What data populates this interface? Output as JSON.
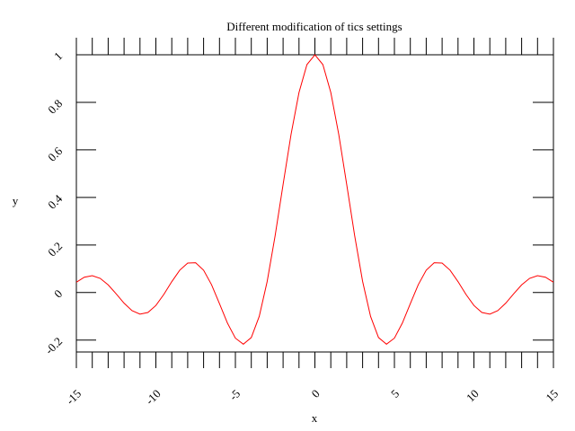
{
  "chart_data": {
    "type": "line",
    "title": "Different modification of tics settings",
    "x_label": "x",
    "y_label": "y",
    "x": [
      -15,
      -14.5,
      -14,
      -13.5,
      -13,
      -12.5,
      -12,
      -11.5,
      -11,
      -10.5,
      -10,
      -9.5,
      -9,
      -8.5,
      -8,
      -7.5,
      -7,
      -6.5,
      -6,
      -5.5,
      -5,
      -4.5,
      -4,
      -3.5,
      -3,
      -2.5,
      -2,
      -1.5,
      -1,
      -0.5,
      0,
      0.5,
      1,
      1.5,
      2,
      2.5,
      3,
      3.5,
      4,
      4.5,
      5,
      5.5,
      6,
      6.5,
      7,
      7.5,
      8,
      8.5,
      9,
      9.5,
      10,
      10.5,
      11,
      11.5,
      12,
      12.5,
      13,
      13.5,
      14,
      14.5,
      15
    ],
    "series": [
      {
        "color": "#ff0000",
        "values": [
          0.0434,
          0.0645,
          0.0708,
          0.0595,
          0.0323,
          -0.0053,
          -0.0447,
          -0.0761,
          -0.0909,
          -0.0838,
          -0.0544,
          -0.0079,
          0.0458,
          0.0939,
          0.1237,
          0.1251,
          0.0939,
          0.0331,
          -0.0466,
          -0.1283,
          -0.1918,
          -0.2172,
          -0.1892,
          -0.1002,
          0.047,
          0.2394,
          0.4546,
          0.665,
          0.8415,
          0.9589,
          1,
          0.9589,
          0.8415,
          0.665,
          0.4546,
          0.2394,
          0.047,
          -0.1002,
          -0.1892,
          -0.2172,
          -0.1918,
          -0.1283,
          -0.0466,
          0.0331,
          0.0939,
          0.1251,
          0.1237,
          0.0939,
          0.0458,
          -0.0079,
          -0.0544,
          -0.0838,
          -0.0909,
          -0.0761,
          -0.0447,
          -0.0053,
          0.0323,
          0.0595,
          0.0708,
          0.0645,
          0.0434
        ]
      }
    ],
    "xlim": [
      -15,
      15
    ],
    "xticks": [
      -15,
      -10,
      -5,
      0,
      5,
      10,
      15
    ],
    "minor_xticks_per_major": 5,
    "ylim": [
      -0.25,
      1
    ],
    "yticks": [
      -0.2,
      0,
      0.2,
      0.4,
      0.6,
      0.8,
      1
    ]
  }
}
